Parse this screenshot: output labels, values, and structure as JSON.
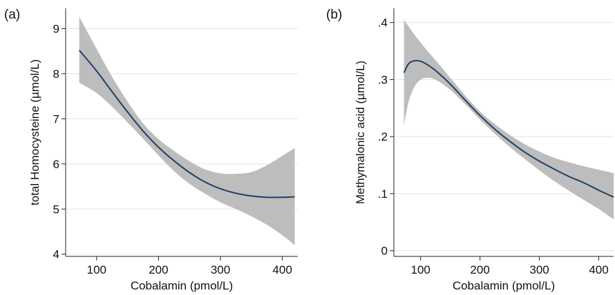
{
  "chart_data": [
    {
      "type": "area",
      "panel_label": "(a)",
      "xlabel": "Cobalamin (pmol/L)",
      "ylabel": "total Homocysteine (µmol/L)",
      "xlim": [
        50,
        425
      ],
      "ylim": [
        3.95,
        9.45
      ],
      "xticks": [
        100,
        200,
        300,
        400
      ],
      "xtick_labels": [
        "100",
        "200",
        "300",
        "400"
      ],
      "yticks": [
        4,
        5,
        6,
        7,
        8,
        9
      ],
      "ytick_labels": [
        "4",
        "5",
        "6",
        "7",
        "8",
        "9"
      ],
      "grid": "horizontal",
      "colors": {
        "line": "#1f3f66",
        "band": "#bdbdbd",
        "grid": "#d9e8ec"
      },
      "fit": {
        "x": [
          72,
          100,
          125,
          150,
          175,
          200,
          225,
          250,
          275,
          300,
          325,
          350,
          375,
          400,
          420
        ],
        "y": [
          8.52,
          8.06,
          7.6,
          7.15,
          6.73,
          6.37,
          6.07,
          5.81,
          5.6,
          5.45,
          5.35,
          5.29,
          5.26,
          5.26,
          5.27
        ],
        "lower": [
          7.8,
          7.57,
          7.27,
          6.92,
          6.56,
          6.19,
          5.84,
          5.56,
          5.34,
          5.15,
          5.0,
          4.84,
          4.65,
          4.42,
          4.2
        ],
        "upper": [
          9.26,
          8.55,
          7.93,
          7.38,
          6.9,
          6.55,
          6.29,
          6.06,
          5.88,
          5.79,
          5.78,
          5.82,
          5.97,
          6.18,
          6.35
        ]
      }
    },
    {
      "type": "area",
      "panel_label": "(b)",
      "xlabel": "Cobalamin (pmol/L)",
      "ylabel": "Methymalonic acid (µmol/L)",
      "xlim": [
        55,
        425
      ],
      "ylim": [
        -0.01,
        0.425
      ],
      "xticks": [
        100,
        200,
        300,
        400
      ],
      "xtick_labels": [
        "100",
        "200",
        "300",
        "400"
      ],
      "yticks": [
        0,
        0.1,
        0.2,
        0.3,
        0.4
      ],
      "ytick_labels": [
        "0",
        ".1",
        ".2",
        ".3",
        ".4"
      ],
      "grid": "horizontal",
      "colors": {
        "line": "#1f3f66",
        "band": "#bdbdbd",
        "grid": "#d9e8ec"
      },
      "fit": {
        "x": [
          72,
          80,
          90,
          100,
          110,
          125,
          150,
          175,
          200,
          225,
          250,
          275,
          300,
          325,
          350,
          375,
          400,
          425
        ],
        "y": [
          0.312,
          0.328,
          0.333,
          0.332,
          0.327,
          0.316,
          0.292,
          0.264,
          0.237,
          0.213,
          0.192,
          0.173,
          0.157,
          0.143,
          0.13,
          0.119,
          0.106,
          0.094
        ],
        "lower": [
          0.22,
          0.262,
          0.288,
          0.3,
          0.303,
          0.3,
          0.282,
          0.257,
          0.23,
          0.205,
          0.182,
          0.161,
          0.141,
          0.122,
          0.105,
          0.089,
          0.073,
          0.055
        ],
        "upper": [
          0.405,
          0.393,
          0.378,
          0.365,
          0.352,
          0.334,
          0.303,
          0.272,
          0.244,
          0.222,
          0.203,
          0.187,
          0.174,
          0.163,
          0.155,
          0.148,
          0.142,
          0.136
        ]
      }
    }
  ]
}
